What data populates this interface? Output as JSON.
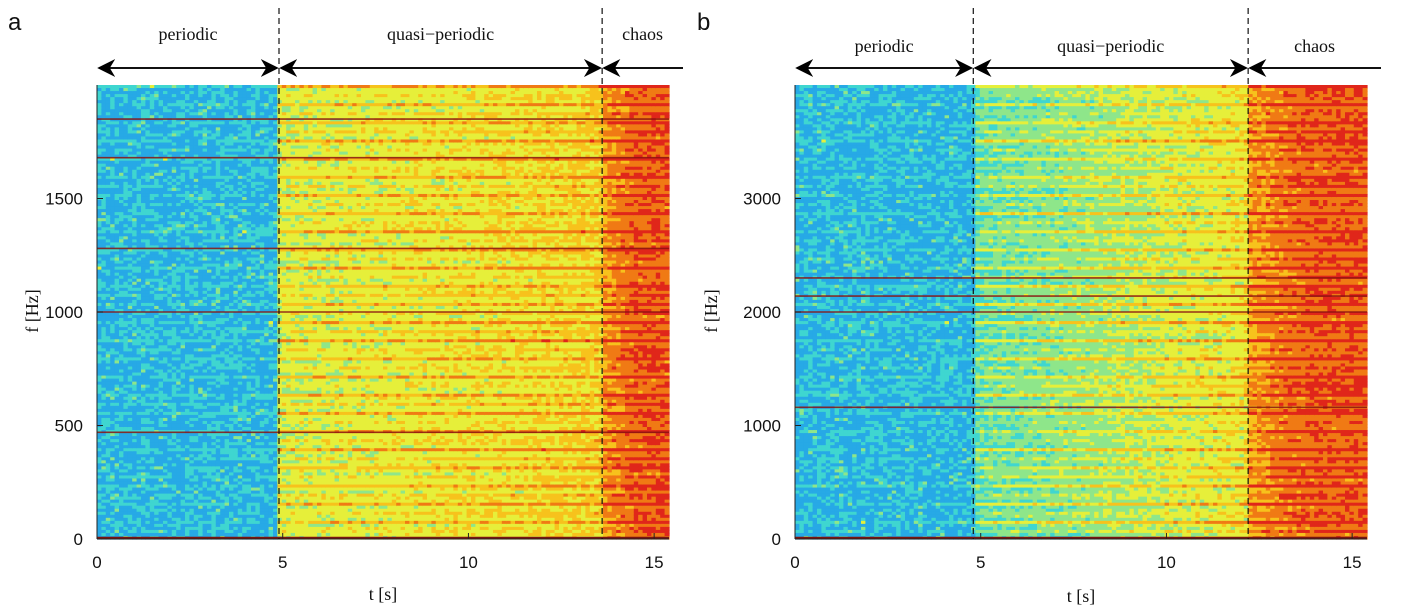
{
  "chart_data": [
    {
      "type": "heatmap",
      "panel_label": "a",
      "xlabel": "t [s]",
      "ylabel": "f [Hz]",
      "xlim": [
        0,
        15.4
      ],
      "ylim": [
        0,
        2000
      ],
      "x_ticks": [
        0,
        5,
        10,
        15
      ],
      "y_ticks": [
        0,
        500,
        1000,
        1500
      ],
      "regime_boundaries": [
        4.9,
        13.6
      ],
      "regimes": [
        {
          "label": "periodic",
          "start": 0,
          "end": 4.9
        },
        {
          "label": "quasi−periodic",
          "start": 4.9,
          "end": 13.6
        },
        {
          "label": "chaos",
          "start": 13.6,
          "end": 15.4
        }
      ],
      "colormap": [
        "#1f4fd6",
        "#27a9e6",
        "#3fd6d0",
        "#8ee68a",
        "#e6ef3a",
        "#f7c21c",
        "#f07a14",
        "#e0261a",
        "#9c1410"
      ],
      "dominant_lines_hz": [
        470,
        1000,
        1280,
        1680,
        1850
      ]
    },
    {
      "type": "heatmap",
      "panel_label": "b",
      "xlabel": "t [s]",
      "ylabel": "f [Hz]",
      "xlim": [
        0,
        15.4
      ],
      "ylim": [
        0,
        4000
      ],
      "x_ticks": [
        0,
        5,
        10,
        15
      ],
      "y_ticks": [
        0,
        1000,
        2000,
        3000
      ],
      "regime_boundaries": [
        4.8,
        12.2
      ],
      "regimes": [
        {
          "label": "periodic",
          "start": 0,
          "end": 4.8
        },
        {
          "label": "quasi−periodic",
          "start": 4.8,
          "end": 12.2
        },
        {
          "label": "chaos",
          "start": 12.2,
          "end": 15.4
        }
      ],
      "colormap": [
        "#1f4fd6",
        "#27a9e6",
        "#3fd6d0",
        "#8ee68a",
        "#e6ef3a",
        "#f7c21c",
        "#f07a14",
        "#e0261a",
        "#9c1410"
      ],
      "dominant_lines_hz": [
        1160,
        2300,
        2140,
        2000
      ]
    }
  ]
}
